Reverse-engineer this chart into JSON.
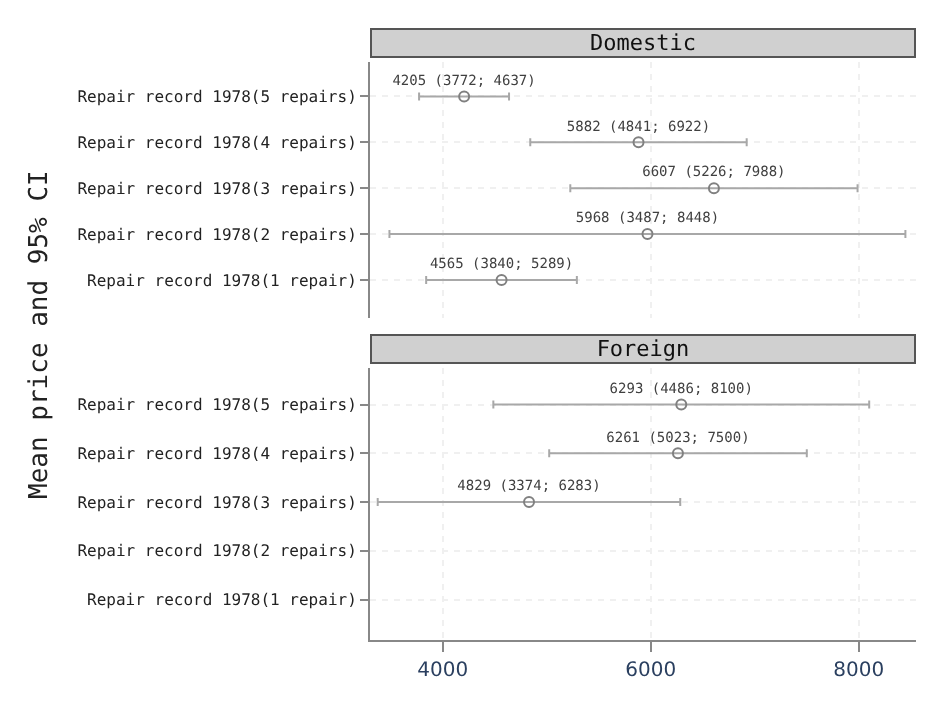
{
  "chart_data": [
    {
      "type": "scatter",
      "title": "Domestic",
      "ylabel": "Mean price and 95% CI",
      "orientation": "horizontal",
      "categories": [
        "Repair record 1978(5 repairs)",
        "Repair record 1978(4 repairs)",
        "Repair record 1978(3 repairs)",
        "Repair record 1978(2 repairs)",
        "Repair record 1978(1 repair)"
      ],
      "series": [
        {
          "color": "#808080",
          "values": [
            4205,
            5882,
            6607,
            5968,
            4565
          ],
          "errors": [
            [
              3772,
              4637
            ],
            [
              4841,
              6922
            ],
            [
              5226,
              7988
            ],
            [
              3487,
              8448
            ],
            [
              3840,
              5289
            ]
          ],
          "value_labels": [
            "4205 (3772; 4637)",
            "5882 (4841; 6922)",
            "6607 (5226; 7988)",
            "5968 (3487; 8448)",
            "4565 (3840; 5289)"
          ]
        }
      ],
      "xlim": [
        3300,
        8550
      ],
      "xticks": [
        4000,
        6000,
        8000
      ],
      "tick_labels": "y",
      "grid": true,
      "marker": "circle"
    },
    {
      "type": "scatter",
      "title": "Foreign",
      "orientation": "horizontal",
      "categories": [
        "Repair record 1978(5 repairs)",
        "Repair record 1978(4 repairs)",
        "Repair record 1978(3 repairs)",
        "Repair record 1978(2 repairs)",
        "Repair record 1978(1 repair)"
      ],
      "series": [
        {
          "color": "#808080",
          "values": [
            6293,
            6261,
            4829,
            null,
            null
          ],
          "errors": [
            [
              4486,
              8100
            ],
            [
              5023,
              7500
            ],
            [
              3374,
              6283
            ],
            null,
            null
          ],
          "value_labels": [
            "6293 (4486; 8100)",
            "6261 (5023; 7500)",
            "4829 (3374; 6283)",
            null,
            null
          ]
        }
      ],
      "xlim": [
        3300,
        8550
      ],
      "xticks": [
        4000,
        6000,
        8000
      ],
      "grid": true,
      "marker": "circle"
    }
  ]
}
